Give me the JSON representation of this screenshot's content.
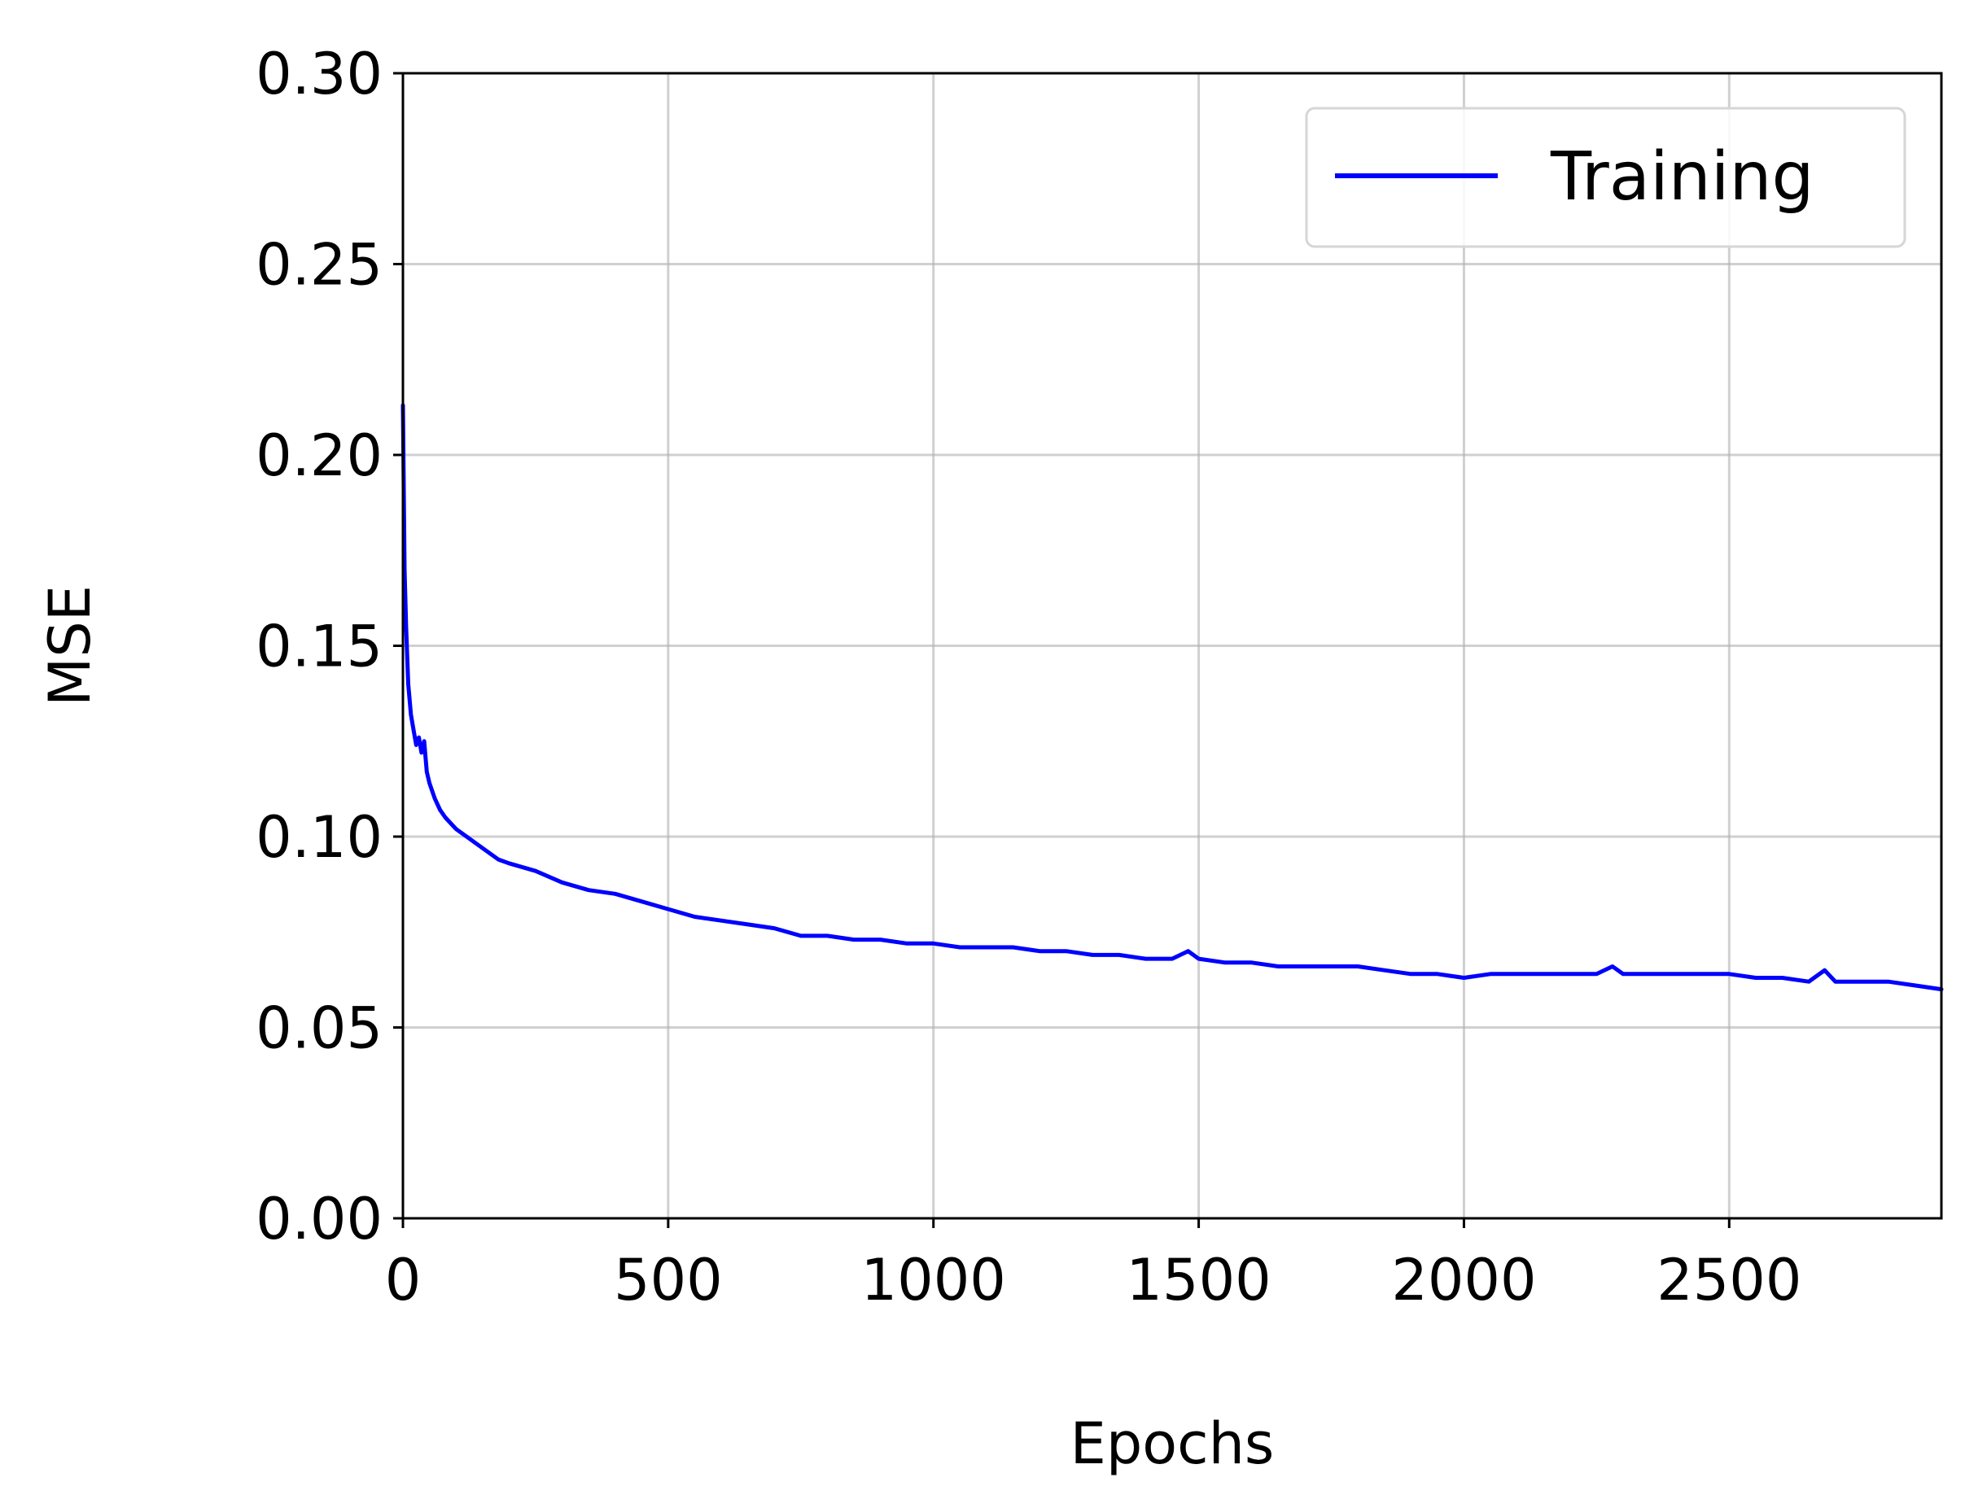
{
  "chart_data": {
    "type": "line",
    "title": "",
    "xlabel": "Epochs",
    "ylabel": "MSE",
    "xlim": [
      0,
      2900
    ],
    "ylim": [
      0.0,
      0.3
    ],
    "x_ticks": [
      0,
      500,
      1000,
      1500,
      2000,
      2500
    ],
    "x_tick_labels": [
      "0",
      "500",
      "1000",
      "1500",
      "2000",
      "2500"
    ],
    "y_ticks": [
      0.0,
      0.05,
      0.1,
      0.15,
      0.2,
      0.25,
      0.3
    ],
    "y_tick_labels": [
      "0.00",
      "0.05",
      "0.10",
      "0.15",
      "0.20",
      "0.25",
      "0.30"
    ],
    "grid": true,
    "legend_position": "top-right",
    "series": [
      {
        "name": "Training",
        "color": "#0000ff",
        "x": [
          0,
          3,
          6,
          10,
          15,
          20,
          25,
          30,
          35,
          40,
          45,
          50,
          60,
          70,
          80,
          100,
          120,
          150,
          180,
          200,
          250,
          300,
          350,
          400,
          450,
          500,
          550,
          600,
          650,
          700,
          750,
          800,
          850,
          900,
          950,
          1000,
          1050,
          1100,
          1150,
          1200,
          1250,
          1300,
          1350,
          1400,
          1450,
          1480,
          1500,
          1550,
          1600,
          1650,
          1700,
          1750,
          1800,
          1850,
          1900,
          1950,
          2000,
          2050,
          2100,
          2150,
          2200,
          2250,
          2280,
          2300,
          2350,
          2400,
          2450,
          2500,
          2550,
          2600,
          2650,
          2680,
          2700,
          2750,
          2800,
          2850,
          2900
        ],
        "y": [
          0.213,
          0.17,
          0.155,
          0.14,
          0.132,
          0.128,
          0.124,
          0.126,
          0.122,
          0.125,
          0.117,
          0.114,
          0.11,
          0.107,
          0.105,
          0.102,
          0.1,
          0.097,
          0.094,
          0.093,
          0.091,
          0.088,
          0.086,
          0.085,
          0.083,
          0.081,
          0.079,
          0.078,
          0.077,
          0.076,
          0.074,
          0.074,
          0.073,
          0.073,
          0.072,
          0.072,
          0.071,
          0.071,
          0.071,
          0.07,
          0.07,
          0.069,
          0.069,
          0.068,
          0.068,
          0.07,
          0.068,
          0.067,
          0.067,
          0.066,
          0.066,
          0.066,
          0.066,
          0.065,
          0.064,
          0.064,
          0.063,
          0.064,
          0.064,
          0.064,
          0.064,
          0.064,
          0.066,
          0.064,
          0.064,
          0.064,
          0.064,
          0.064,
          0.063,
          0.063,
          0.062,
          0.065,
          0.062,
          0.062,
          0.062,
          0.061,
          0.06
        ]
      }
    ]
  }
}
